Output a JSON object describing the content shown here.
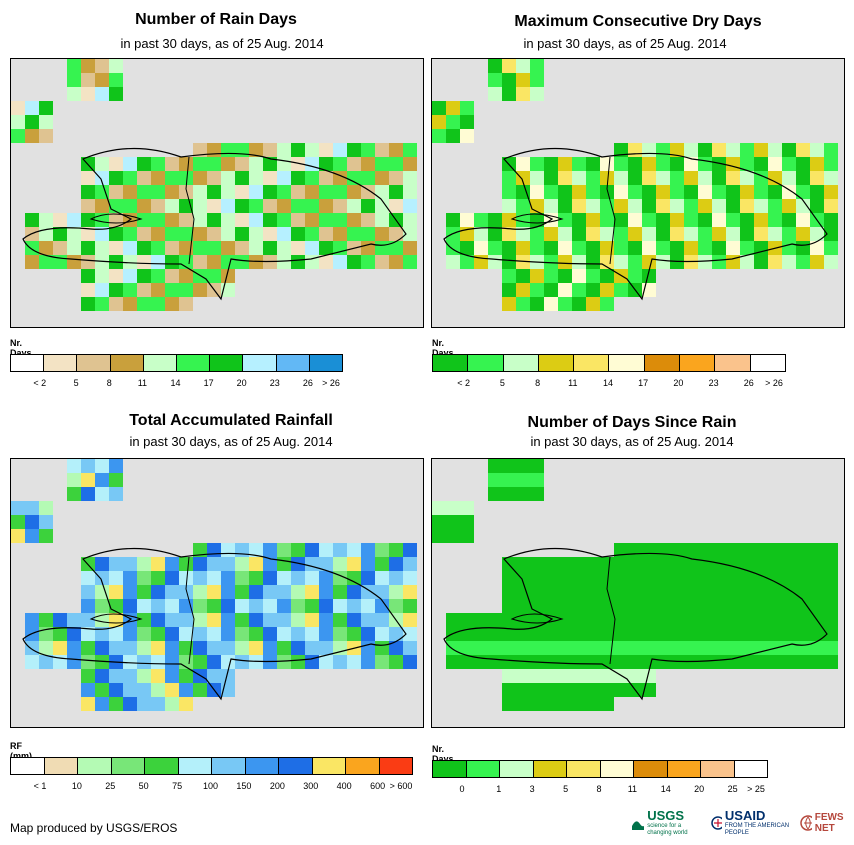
{
  "panels": [
    {
      "id": "rain-days",
      "title": "Number of Rain Days",
      "subtitle": "in past 30 days, as of 25 Aug. 2014",
      "legend_title": "Nr. Days",
      "legend_colors": [
        "#ffffff",
        "#f3e3c4",
        "#dfc391",
        "#c9a03c",
        "#c8ffc8",
        "#36f350",
        "#10c41a",
        "#b6f0ff",
        "#62b8f5",
        "#1a8fd6"
      ],
      "legend_labels": [
        "< 2",
        "5",
        "8",
        "11",
        "14",
        "17",
        "20",
        "23",
        "26",
        "> 26"
      ]
    },
    {
      "id": "dry-days",
      "title": "Maximum Consecutive Dry Days",
      "subtitle": "in past 30 days, as of 25 Aug. 2014",
      "legend_title": "Nr. Days",
      "legend_colors": [
        "#10c41a",
        "#36f350",
        "#c8ffc8",
        "#dccc14",
        "#fae664",
        "#fffcd4",
        "#dc8c0a",
        "#faa51e",
        "#fac38c",
        "#ffffff"
      ],
      "legend_labels": [
        "< 2",
        "5",
        "8",
        "11",
        "14",
        "17",
        "20",
        "23",
        "26",
        "> 26"
      ]
    },
    {
      "id": "rainfall",
      "title": "Total Accumulated Rainfall",
      "subtitle": "in past 30 days, as of 25 Aug. 2014",
      "legend_title": "RF (mm)",
      "legend_colors": [
        "#ffffff",
        "#f0dcb4",
        "#b4fab4",
        "#78e678",
        "#3cd23c",
        "#b4f0fa",
        "#78c8f5",
        "#3c96f0",
        "#1e6ee6",
        "#fae664",
        "#faa51e",
        "#fa3c14"
      ],
      "legend_labels": [
        "< 1",
        "10",
        "25",
        "50",
        "75",
        "100",
        "150",
        "200",
        "300",
        "400",
        "600",
        "> 600"
      ]
    },
    {
      "id": "since-rain",
      "title": "Number of Days Since Rain",
      "subtitle": "in past 30 days, as of 25 Aug. 2014",
      "legend_title": "Nr. Days",
      "legend_colors": [
        "#10c41a",
        "#36f350",
        "#c8ffc8",
        "#dccc14",
        "#fae664",
        "#fffcd4",
        "#dc8c0a",
        "#faa51e",
        "#fac38c",
        "#ffffff"
      ],
      "legend_labels": [
        "0",
        "1",
        "3",
        "5",
        "8",
        "11",
        "14",
        "20",
        "25",
        "> 25"
      ]
    }
  ],
  "footer": "Map produced by USGS/EROS",
  "logos": {
    "usgs": "USGS",
    "usgs_tagline": "science for a changing world",
    "usaid": "USAID",
    "usaid_tagline": "FROM THE AMERICAN PEOPLE",
    "fews": "FEWS NET"
  },
  "colors": {
    "map_bg": "#e1e1e1",
    "outline": "#000000"
  }
}
